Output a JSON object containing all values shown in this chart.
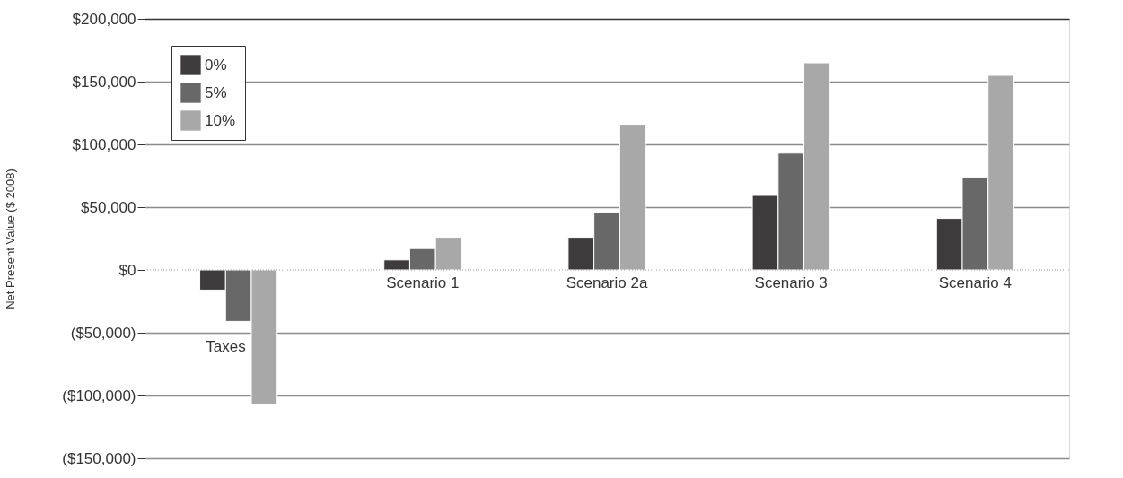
{
  "chart_data": {
    "type": "bar",
    "ylabel": "Net Present Value ($ 2008)",
    "categories": [
      "Taxes",
      "Scenario 1",
      "Scenario 2a",
      "Scenario 3",
      "Scenario 4"
    ],
    "series": [
      {
        "name": "0%",
        "color": "#3d3b3c",
        "values": [
          -16000,
          8000,
          26000,
          60000,
          41000
        ]
      },
      {
        "name": "5%",
        "color": "#686868",
        "values": [
          -41000,
          17000,
          46000,
          93000,
          74000
        ]
      },
      {
        "name": "10%",
        "color": "#a8a8a8",
        "values": [
          -107000,
          26000,
          116000,
          165000,
          155000
        ]
      }
    ],
    "ylim": [
      -150000,
      200000
    ],
    "yticks": [
      {
        "value": -150000,
        "label": "($150,000)"
      },
      {
        "value": -100000,
        "label": "($100,000)"
      },
      {
        "value": -50000,
        "label": "($50,000)"
      },
      {
        "value": 0,
        "label": "$0"
      },
      {
        "value": 50000,
        "label": "$50,000"
      },
      {
        "value": 100000,
        "label": "$100,000"
      },
      {
        "value": 150000,
        "label": "$150,000"
      },
      {
        "value": 200000,
        "label": "$200,000"
      }
    ],
    "ref_lines": [
      {
        "axis": "y",
        "value": 0,
        "color": "#999999",
        "line_style": "dotted"
      }
    ],
    "grid": "y",
    "legend": "top left"
  }
}
